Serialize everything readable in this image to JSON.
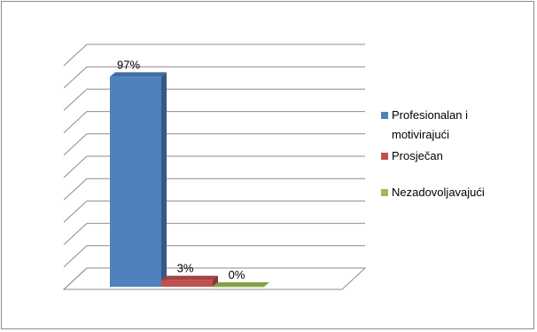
{
  "chart_data": {
    "type": "bar",
    "three_d": true,
    "categories": [
      "Profesionalan i motivirajući",
      "Prosječan",
      "Nezadovoljavajući"
    ],
    "series": [
      {
        "values": [
          97,
          3,
          0
        ],
        "data_labels": [
          "97%",
          "3%",
          "0%"
        ],
        "colors": [
          "#4f81bd",
          "#c0504d",
          "#9bbb59"
        ]
      }
    ],
    "ylim": [
      0,
      100
    ],
    "grid": true,
    "legend": {
      "position": "right",
      "entries": [
        {
          "lines": [
            "Profesionalan i",
            "motivirajući"
          ],
          "color": "#4f81bd"
        },
        {
          "lines": [
            "Prosječan"
          ],
          "color": "#c0504d"
        },
        {
          "lines": [
            "Nezadovoljavajući"
          ],
          "color": "#9bbb59"
        }
      ]
    },
    "title": "",
    "xlabel": "",
    "ylabel": ""
  }
}
